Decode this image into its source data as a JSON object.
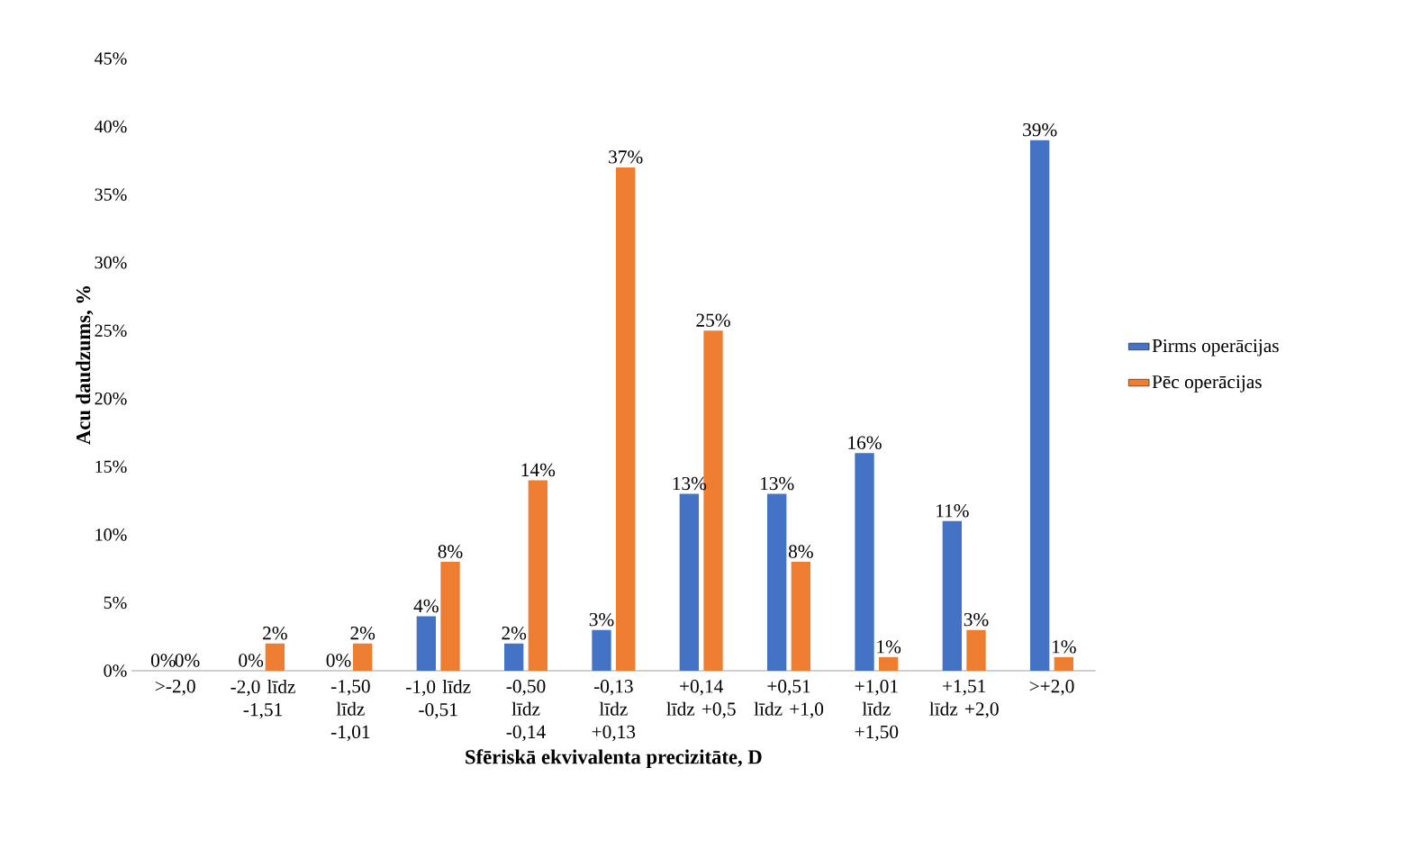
{
  "chart_data": {
    "type": "bar",
    "xlabel": "Sfēriskā ekvivalenta precizitāte, D",
    "ylabel": "Acu daudzums, %",
    "categories": [
      ">-2,0",
      "-2,0 līdz -1,51",
      "-1,50 līdz -1,01",
      "-1,0 līdz -0,51",
      "-0,50 līdz -0,14",
      "-0,13 līdz +0,13",
      "+0,14 līdz +0,5",
      "+0,51 līdz +1,0",
      "+1,01 līdz +1,50",
      "+1,51 līdz +2,0",
      ">+2,0"
    ],
    "series": [
      {
        "name": "Pirms operācijas",
        "color": "#4472c4",
        "values": [
          0,
          0,
          0,
          4,
          2,
          3,
          13,
          13,
          16,
          11,
          39
        ],
        "value_labels": [
          "0%",
          "0%",
          "0%",
          "4%",
          "2%",
          "3%",
          "13%",
          "13%",
          "16%",
          "11%",
          "39%"
        ]
      },
      {
        "name": "Pēc operācijas",
        "color": "#ed7d31",
        "values": [
          0,
          2,
          2,
          8,
          14,
          37,
          25,
          8,
          1,
          3,
          1
        ],
        "value_labels": [
          "0%",
          "2%",
          "2%",
          "8%",
          "14%",
          "37%",
          "25%",
          "8%",
          "1%",
          "3%",
          "1%"
        ]
      }
    ],
    "ylim": [
      0,
      45
    ],
    "yticks": [
      {
        "value": 0,
        "label": "0%"
      },
      {
        "value": 5,
        "label": "5%"
      },
      {
        "value": 10,
        "label": "10%"
      },
      {
        "value": 15,
        "label": "15%"
      },
      {
        "value": 20,
        "label": "20%"
      },
      {
        "value": 25,
        "label": "25%"
      },
      {
        "value": 30,
        "label": "30%"
      },
      {
        "value": 35,
        "label": "35%"
      },
      {
        "value": 40,
        "label": "40%"
      },
      {
        "value": 45,
        "label": "45%"
      }
    ],
    "legend": "right",
    "grid": false
  }
}
